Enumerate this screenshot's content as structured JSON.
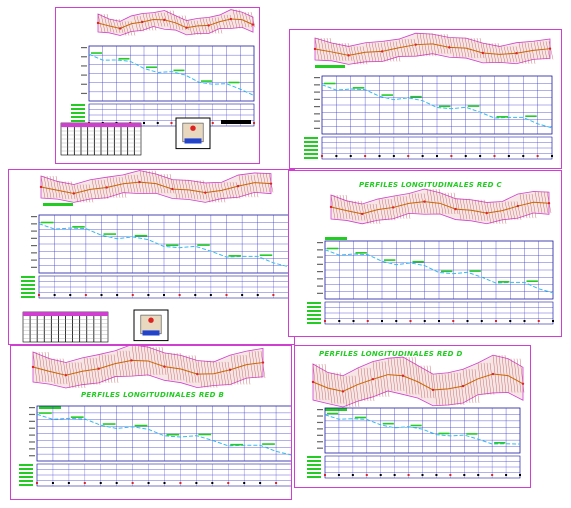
{
  "sheets": [
    {
      "id": "sheet-1",
      "heading": "",
      "frame_color": "#d040d0"
    },
    {
      "id": "sheet-2",
      "heading": "",
      "frame_color": "#d040d0"
    },
    {
      "id": "sheet-3",
      "heading": "",
      "frame_color": "#d040d0"
    },
    {
      "id": "sheet-4",
      "heading": "PERFILES LONGITUDINALES RED C",
      "frame_color": "#d040d0"
    },
    {
      "id": "sheet-5",
      "heading": "PERFILES LONGITUDINALES RED B",
      "frame_color": "#d040d0"
    },
    {
      "id": "sheet-6",
      "heading": "PERFILES LONGITUDINALES RED D",
      "frame_color": "#d040d0"
    }
  ],
  "colors": {
    "frame": "#d040d0",
    "grid": "#1a1aa0",
    "grid_minor": "#3a3ad0",
    "hatch": "#c05050",
    "profile_line": "#33bbee",
    "label_green": "#22cc22",
    "marker_red": "#dd2222",
    "text_black": "#000000"
  }
}
